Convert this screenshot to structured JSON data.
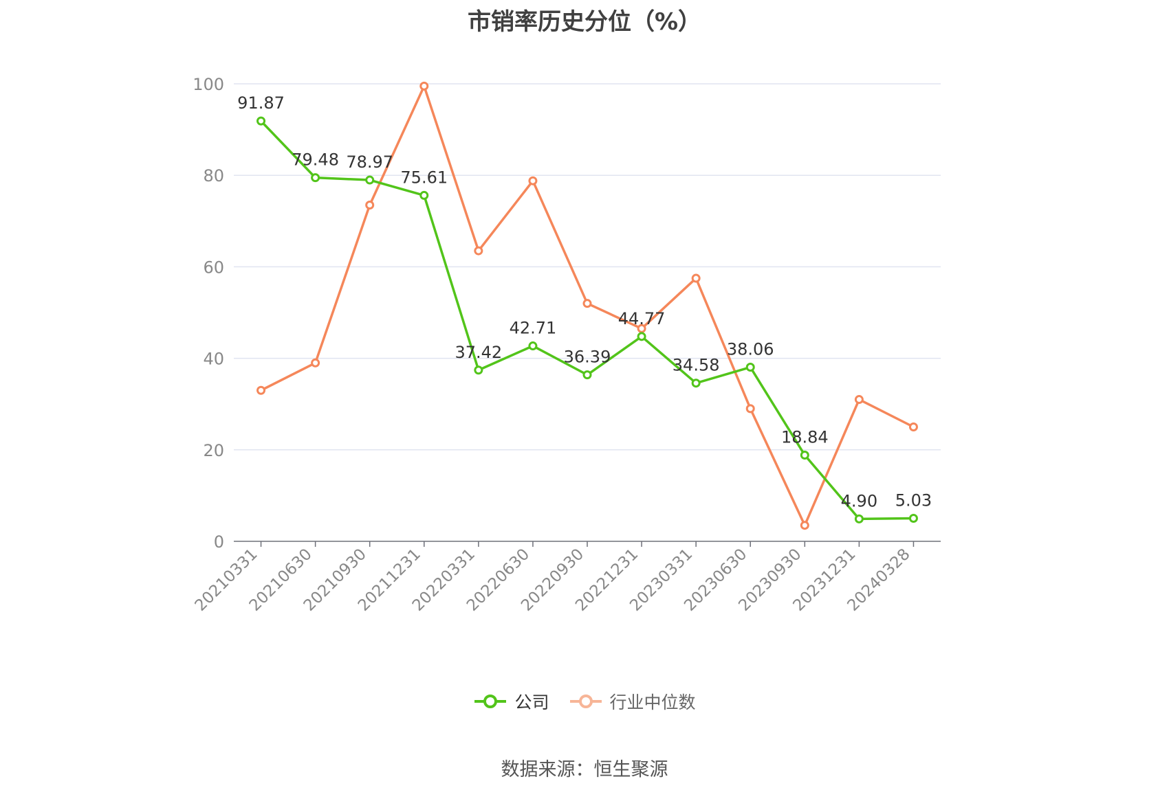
{
  "title": "市销率历史分位（%）",
  "source": "数据来源：恒生聚源",
  "legend": {
    "company": "公司",
    "industry": "行业中位数"
  },
  "colors": {
    "company": "#52c41a",
    "industry": "#f5875a",
    "grid": "#e0e4f0",
    "axis": "#6e7079",
    "tick_text": "#888888",
    "label_text": "#333333"
  },
  "chart_data": {
    "type": "line",
    "categories": [
      "20210331",
      "20210630",
      "20210930",
      "20211231",
      "20220331",
      "20220630",
      "20220930",
      "20221231",
      "20230331",
      "20230630",
      "20230930",
      "20231231",
      "20240328"
    ],
    "ylim": [
      0,
      100
    ],
    "yticks": [
      0,
      20,
      40,
      60,
      80,
      100
    ],
    "grid": true,
    "legend_position": "bottom",
    "series": [
      {
        "name": "公司",
        "values": [
          91.87,
          79.48,
          78.97,
          75.61,
          37.42,
          42.71,
          36.39,
          44.77,
          34.58,
          38.06,
          18.84,
          4.9,
          5.03
        ],
        "labels": [
          "91.87",
          "79.48",
          "78.97",
          "75.61",
          "37.42",
          "42.71",
          "36.39",
          "44.77",
          "34.58",
          "38.06",
          "18.84",
          "4.90",
          "5.03"
        ]
      },
      {
        "name": "行业中位数",
        "values": [
          33,
          39,
          73.5,
          99.5,
          63.5,
          78.8,
          52,
          46.5,
          57.5,
          29,
          3.5,
          31,
          25
        ]
      }
    ]
  }
}
